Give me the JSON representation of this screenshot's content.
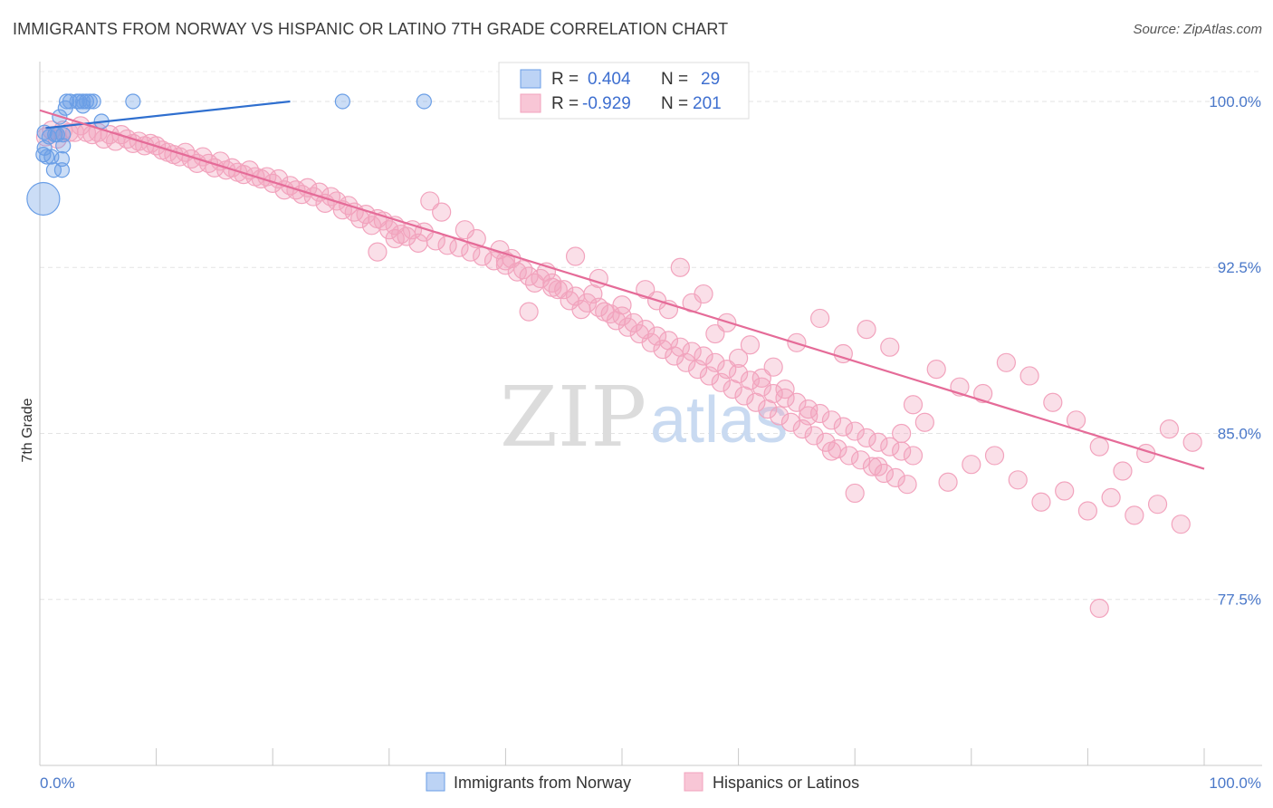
{
  "title": "IMMIGRANTS FROM NORWAY VS HISPANIC OR LATINO 7TH GRADE CORRELATION CHART",
  "source": "Source: ZipAtlas.com",
  "watermark": {
    "zip": "ZIP",
    "atlas": "atlas"
  },
  "colors": {
    "blue": "#6a9ee6",
    "blue_line": "#2f6fcf",
    "pink": "#f2a3bd",
    "pink_line": "#e56b98",
    "tick": "#4a78c9"
  },
  "stats": {
    "r_label": "R =",
    "n_label": "N =",
    "series1": {
      "r": "0.404",
      "n": "29"
    },
    "series2": {
      "r": "-0.929",
      "n": "201"
    }
  },
  "chart_data": {
    "type": "scatter",
    "title": "IMMIGRANTS FROM NORWAY VS HISPANIC OR LATINO 7TH GRADE CORRELATION CHART",
    "xlabel": "",
    "ylabel": "7th Grade",
    "xlim": [
      0,
      100
    ],
    "ylim": [
      70,
      101.8
    ],
    "x_tick_labels": [
      "0.0%",
      "100.0%"
    ],
    "y_ticks": [
      100,
      92.5,
      85,
      77.5
    ],
    "y_tick_labels": [
      "100.0%",
      "92.5%",
      "85.0%",
      "77.5%"
    ],
    "grid": true,
    "legend_position": "top-center",
    "series": [
      {
        "name": "Immigrants from Norway",
        "color": "#6a9ee6",
        "trend": [
          [
            0.5,
            98.8
          ],
          [
            21.5,
            100.0
          ]
        ],
        "points": [
          [
            2.3,
            100.0
          ],
          [
            2.6,
            100.0
          ],
          [
            3.2,
            100.0
          ],
          [
            3.4,
            100.0
          ],
          [
            3.7,
            100.0
          ],
          [
            4.0,
            100.0
          ],
          [
            4.3,
            100.0
          ],
          [
            4.6,
            100.0
          ],
          [
            8.0,
            100.0
          ],
          [
            26.0,
            100.0
          ],
          [
            33.0,
            100.0
          ],
          [
            2.2,
            99.7
          ],
          [
            3.7,
            99.8
          ],
          [
            1.7,
            99.3
          ],
          [
            5.3,
            99.1
          ],
          [
            0.4,
            98.6
          ],
          [
            1.3,
            98.5
          ],
          [
            2.0,
            98.5
          ],
          [
            0.4,
            97.9
          ],
          [
            2.0,
            98.0
          ],
          [
            0.3,
            97.6
          ],
          [
            0.6,
            97.5
          ],
          [
            1.0,
            97.5
          ],
          [
            1.9,
            97.4
          ],
          [
            1.2,
            96.9
          ],
          [
            1.9,
            96.9
          ],
          [
            0.3,
            95.6
          ],
          [
            0.8,
            98.4
          ],
          [
            1.5,
            98.5
          ]
        ],
        "sizes": [
          10,
          10,
          10,
          10,
          10,
          10,
          10,
          10,
          10,
          10,
          10,
          10,
          10,
          10,
          10,
          10,
          10,
          10,
          10,
          10,
          10,
          10,
          10,
          10,
          10,
          10,
          18,
          10,
          10
        ]
      },
      {
        "name": "Hispanics or Latinos",
        "color": "#f2a3bd",
        "trend": [
          [
            0.0,
            99.6
          ],
          [
            100.0,
            83.4
          ]
        ],
        "points": [
          [
            0.5,
            98.4
          ],
          [
            1.0,
            98.7
          ],
          [
            1.5,
            98.3
          ],
          [
            2.0,
            98.7
          ],
          [
            2.5,
            98.6
          ],
          [
            3.0,
            98.6
          ],
          [
            3.5,
            98.9
          ],
          [
            4.0,
            98.6
          ],
          [
            4.5,
            98.5
          ],
          [
            5.0,
            98.6
          ],
          [
            5.5,
            98.3
          ],
          [
            6.0,
            98.5
          ],
          [
            6.5,
            98.2
          ],
          [
            7.0,
            98.5
          ],
          [
            7.5,
            98.3
          ],
          [
            8.0,
            98.1
          ],
          [
            8.5,
            98.2
          ],
          [
            9.0,
            98.0
          ],
          [
            9.5,
            98.1
          ],
          [
            10.0,
            98.0
          ],
          [
            10.5,
            97.8
          ],
          [
            11.0,
            97.7
          ],
          [
            11.5,
            97.6
          ],
          [
            12.0,
            97.5
          ],
          [
            12.5,
            97.7
          ],
          [
            13.0,
            97.4
          ],
          [
            13.5,
            97.2
          ],
          [
            14.0,
            97.5
          ],
          [
            14.5,
            97.2
          ],
          [
            15.0,
            97.0
          ],
          [
            15.5,
            97.3
          ],
          [
            16.0,
            96.9
          ],
          [
            16.5,
            97.0
          ],
          [
            17.0,
            96.8
          ],
          [
            17.5,
            96.7
          ],
          [
            18.0,
            96.9
          ],
          [
            18.5,
            96.6
          ],
          [
            19.0,
            96.5
          ],
          [
            19.5,
            96.6
          ],
          [
            20.0,
            96.3
          ],
          [
            20.5,
            96.5
          ],
          [
            21.0,
            96.0
          ],
          [
            21.5,
            96.2
          ],
          [
            22.0,
            96.0
          ],
          [
            22.5,
            95.8
          ],
          [
            23.0,
            96.1
          ],
          [
            23.5,
            95.7
          ],
          [
            24.0,
            95.9
          ],
          [
            24.5,
            95.4
          ],
          [
            25.0,
            95.7
          ],
          [
            25.5,
            95.5
          ],
          [
            26.0,
            95.1
          ],
          [
            26.5,
            95.3
          ],
          [
            27.0,
            95.0
          ],
          [
            27.5,
            94.7
          ],
          [
            28.0,
            94.9
          ],
          [
            28.5,
            94.4
          ],
          [
            29.0,
            94.7
          ],
          [
            29.5,
            94.6
          ],
          [
            30.0,
            94.2
          ],
          [
            30.5,
            94.4
          ],
          [
            31.0,
            94.0
          ],
          [
            31.5,
            93.9
          ],
          [
            32.0,
            94.2
          ],
          [
            32.5,
            93.6
          ],
          [
            33.0,
            94.1
          ],
          [
            34.0,
            93.7
          ],
          [
            35.0,
            93.5
          ],
          [
            36.0,
            93.4
          ],
          [
            37.0,
            93.2
          ],
          [
            38.0,
            93.0
          ],
          [
            39.0,
            92.8
          ],
          [
            40.0,
            92.6
          ],
          [
            41.0,
            92.3
          ],
          [
            42.0,
            92.1
          ],
          [
            43.0,
            92.0
          ],
          [
            44.0,
            91.6
          ],
          [
            45.0,
            91.5
          ],
          [
            46.0,
            91.2
          ],
          [
            47.0,
            90.9
          ],
          [
            48.0,
            90.7
          ],
          [
            49.0,
            90.4
          ],
          [
            50.0,
            90.3
          ],
          [
            51.0,
            90.0
          ],
          [
            52.0,
            89.7
          ],
          [
            53.0,
            89.4
          ],
          [
            54.0,
            89.2
          ],
          [
            55.0,
            88.9
          ],
          [
            56.0,
            88.7
          ],
          [
            57.0,
            88.5
          ],
          [
            58.0,
            88.2
          ],
          [
            59.0,
            87.9
          ],
          [
            60.0,
            87.7
          ],
          [
            61.0,
            87.4
          ],
          [
            62.0,
            87.1
          ],
          [
            63.0,
            86.8
          ],
          [
            64.0,
            86.6
          ],
          [
            65.0,
            86.4
          ],
          [
            66.0,
            86.1
          ],
          [
            67.0,
            85.9
          ],
          [
            68.0,
            85.6
          ],
          [
            69.0,
            85.3
          ],
          [
            70.0,
            85.1
          ],
          [
            71.0,
            84.8
          ],
          [
            72.0,
            84.6
          ],
          [
            73.0,
            84.4
          ],
          [
            74.0,
            84.2
          ],
          [
            75.0,
            84.0
          ],
          [
            29.0,
            93.2
          ],
          [
            30.5,
            93.8
          ],
          [
            33.5,
            95.5
          ],
          [
            34.5,
            95.0
          ],
          [
            36.5,
            94.2
          ],
          [
            37.5,
            93.8
          ],
          [
            39.5,
            93.3
          ],
          [
            40.5,
            92.9
          ],
          [
            41.5,
            92.4
          ],
          [
            42.5,
            91.8
          ],
          [
            43.5,
            92.3
          ],
          [
            44.5,
            91.5
          ],
          [
            45.5,
            91.0
          ],
          [
            46.5,
            90.6
          ],
          [
            47.5,
            91.3
          ],
          [
            48.5,
            90.5
          ],
          [
            49.5,
            90.1
          ],
          [
            50.5,
            89.8
          ],
          [
            51.5,
            89.5
          ],
          [
            52.5,
            89.1
          ],
          [
            53.5,
            88.8
          ],
          [
            54.5,
            88.5
          ],
          [
            55.5,
            88.2
          ],
          [
            56.5,
            87.9
          ],
          [
            57.5,
            87.6
          ],
          [
            58.5,
            87.3
          ],
          [
            59.5,
            87.0
          ],
          [
            60.5,
            86.7
          ],
          [
            61.5,
            86.4
          ],
          [
            62.5,
            86.1
          ],
          [
            63.5,
            85.8
          ],
          [
            64.5,
            85.5
          ],
          [
            65.5,
            85.2
          ],
          [
            66.5,
            84.9
          ],
          [
            67.5,
            84.6
          ],
          [
            68.5,
            84.3
          ],
          [
            69.5,
            84.0
          ],
          [
            70.5,
            83.8
          ],
          [
            71.5,
            83.5
          ],
          [
            72.5,
            83.2
          ],
          [
            73.5,
            83.0
          ],
          [
            74.5,
            82.7
          ],
          [
            40.0,
            92.8
          ],
          [
            42.0,
            90.5
          ],
          [
            44.0,
            91.8
          ],
          [
            46.0,
            93.0
          ],
          [
            48.0,
            92.0
          ],
          [
            50.0,
            90.8
          ],
          [
            52.0,
            91.5
          ],
          [
            54.0,
            90.6
          ],
          [
            56.0,
            90.9
          ],
          [
            58.0,
            89.5
          ],
          [
            60.0,
            88.4
          ],
          [
            62.0,
            87.5
          ],
          [
            64.0,
            87.0
          ],
          [
            66.0,
            85.8
          ],
          [
            68.0,
            84.2
          ],
          [
            70.0,
            82.3
          ],
          [
            72.0,
            83.5
          ],
          [
            74.0,
            85.0
          ],
          [
            76.0,
            85.5
          ],
          [
            78.0,
            82.8
          ],
          [
            80.0,
            83.6
          ],
          [
            82.0,
            84.0
          ],
          [
            84.0,
            82.9
          ],
          [
            86.0,
            81.9
          ],
          [
            88.0,
            82.4
          ],
          [
            90.0,
            81.5
          ],
          [
            92.0,
            82.1
          ],
          [
            94.0,
            81.3
          ],
          [
            96.0,
            81.8
          ],
          [
            98.0,
            80.9
          ],
          [
            99.0,
            84.6
          ],
          [
            97.0,
            85.2
          ],
          [
            95.0,
            84.1
          ],
          [
            93.0,
            83.3
          ],
          [
            91.0,
            84.4
          ],
          [
            89.0,
            85.6
          ],
          [
            87.0,
            86.4
          ],
          [
            85.0,
            87.6
          ],
          [
            83.0,
            88.2
          ],
          [
            81.0,
            86.8
          ],
          [
            79.0,
            87.1
          ],
          [
            77.0,
            87.9
          ],
          [
            75.0,
            86.3
          ],
          [
            73.0,
            88.9
          ],
          [
            71.0,
            89.7
          ],
          [
            69.0,
            88.6
          ],
          [
            67.0,
            90.2
          ],
          [
            65.0,
            89.1
          ],
          [
            63.0,
            88.0
          ],
          [
            61.0,
            89.0
          ],
          [
            59.0,
            90.0
          ],
          [
            57.0,
            91.3
          ],
          [
            55.0,
            92.5
          ],
          [
            53.0,
            91.0
          ],
          [
            91.0,
            77.1
          ]
        ]
      }
    ]
  },
  "legend_bottom": {
    "series1": "Immigrants from Norway",
    "series2": "Hispanics or Latinos"
  }
}
